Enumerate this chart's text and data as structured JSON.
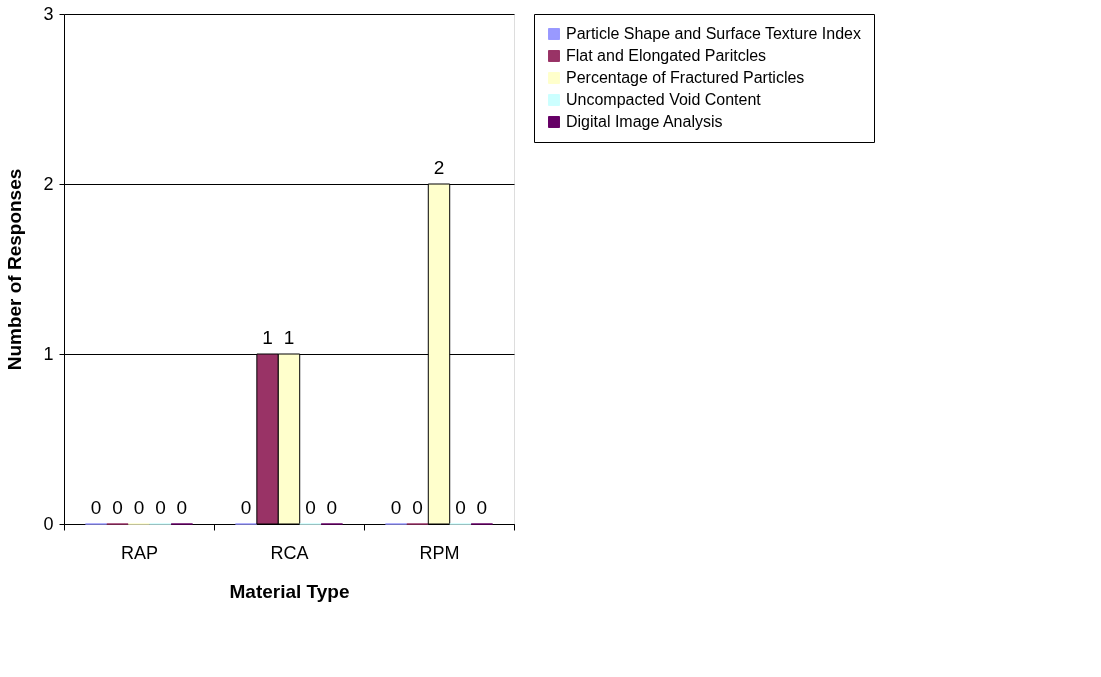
{
  "chart_data": {
    "type": "bar",
    "xlabel": "Material Type",
    "ylabel": "Number of Responses",
    "categories": [
      "RAP",
      "RCA",
      "RPM"
    ],
    "series": [
      {
        "name": "Particle Shape and Surface Texture Index",
        "color": "#9999ff",
        "values": [
          0,
          0,
          0
        ]
      },
      {
        "name": "Flat and Elongated Paritcles",
        "color": "#993366",
        "values": [
          0,
          1,
          0
        ]
      },
      {
        "name": "Percentage of Fractured Particles",
        "color": "#ffffcc",
        "values": [
          0,
          1,
          2
        ]
      },
      {
        "name": "Uncompacted Void Content",
        "color": "#ccffff",
        "values": [
          0,
          0,
          0
        ]
      },
      {
        "name": "Digital Image Analysis",
        "color": "#660066",
        "values": [
          0,
          0,
          0
        ]
      }
    ],
    "ylim": [
      0,
      3
    ],
    "yticks": [
      0,
      1,
      2,
      3
    ],
    "grid": "y",
    "legend": "right",
    "data_labels": true
  }
}
